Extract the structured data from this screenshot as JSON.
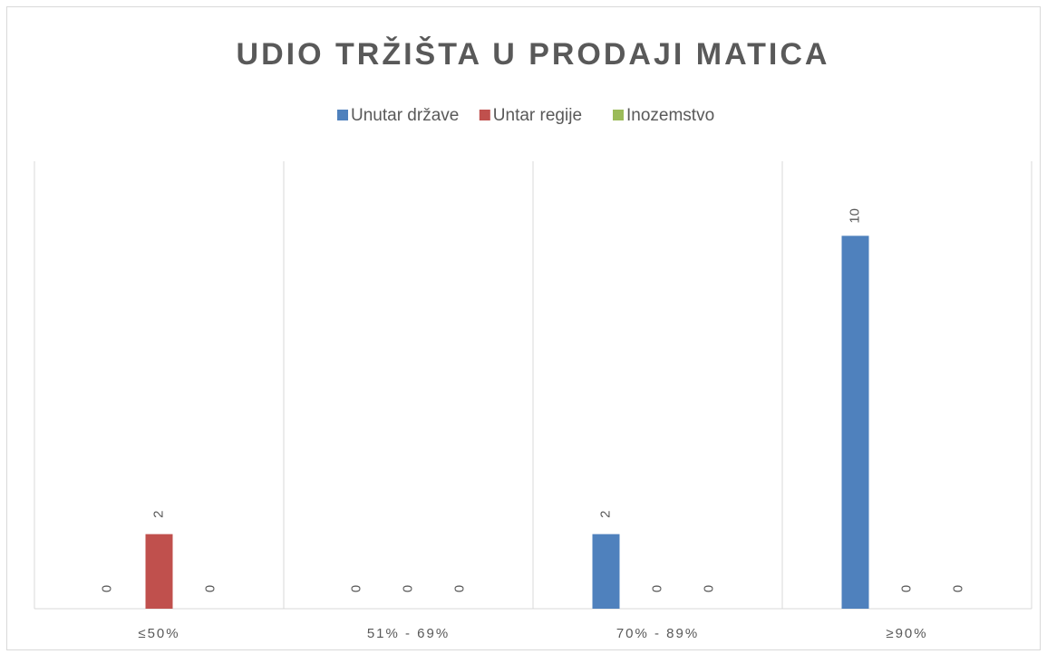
{
  "chart_data": {
    "type": "bar",
    "title": "UDIO TRŽIŠTA U PRODAJI MATICA",
    "categories": [
      "≤50%",
      "51% - 69%",
      "70% - 89%",
      "≥90%"
    ],
    "series": [
      {
        "name": "Unutar države",
        "color": "#4f81bd",
        "values": [
          0,
          0,
          2,
          10
        ]
      },
      {
        "name": "Untar regije",
        "color": "#c0504d",
        "values": [
          2,
          0,
          0,
          0
        ]
      },
      {
        "name": "Inozemstvo",
        "color": "#9bbb59",
        "values": [
          0,
          0,
          0,
          0
        ]
      }
    ],
    "ylim": [
      0,
      12
    ],
    "data_labels": true,
    "category_grid": true,
    "legend": "top"
  }
}
